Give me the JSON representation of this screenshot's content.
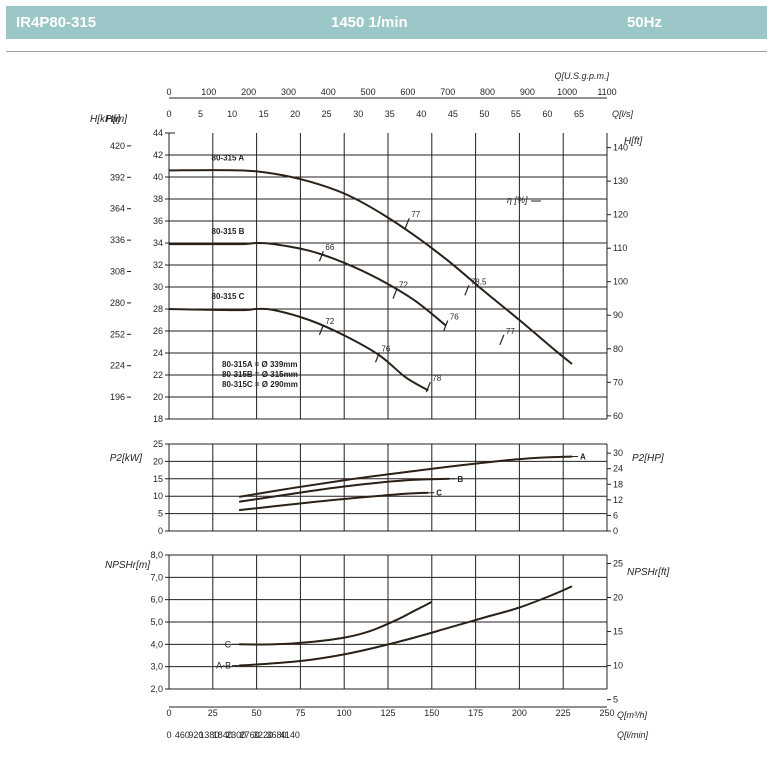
{
  "header": {
    "model": "IR4P80-315",
    "speed": "1450 1/min",
    "frequency": "50Hz"
  },
  "colors": {
    "header_bg": "#9cc7c9",
    "curve": "#2a2118",
    "grid": "#231f20"
  },
  "chart_data": {
    "type": "line",
    "flow_axes": {
      "q_gpm": {
        "label": "Q[U.S.g.p.m.]",
        "ticks": [
          0,
          100,
          200,
          300,
          400,
          500,
          600,
          700,
          800,
          900,
          1000,
          1100
        ]
      },
      "q_ls": {
        "label": "Q[l/s]",
        "ticks": [
          0,
          5,
          10,
          15,
          20,
          25,
          30,
          35,
          40,
          45,
          50,
          55,
          60,
          65
        ]
      },
      "q_m3h": {
        "label": "Q[m³/h]",
        "ticks": [
          0,
          25,
          50,
          75,
          100,
          125,
          150,
          175,
          200,
          225,
          250
        ],
        "range": [
          0,
          250
        ]
      },
      "q_lmin": {
        "label": "Q[l/min]",
        "ticks": [
          0,
          460,
          920,
          1380,
          1840,
          2300,
          2760,
          3220,
          3680,
          4140
        ]
      }
    },
    "head_panel": {
      "y_label": "H[m]",
      "y_range": [
        18,
        44
      ],
      "y_ticks": [
        18,
        20,
        22,
        24,
        26,
        28,
        30,
        32,
        34,
        36,
        38,
        40,
        42,
        44
      ],
      "kpa_label": "H[kPa]",
      "kpa_ticks": [
        196,
        224,
        252,
        280,
        308,
        336,
        364,
        392,
        420
      ],
      "ft_label": "H[ft]",
      "ft_ticks": [
        60,
        70,
        80,
        90,
        100,
        110,
        120,
        130,
        140
      ],
      "eff_label": "η [%]",
      "series": [
        {
          "name": "80-315 A",
          "points": [
            [
              0,
              40.6
            ],
            [
              40,
              40.6
            ],
            [
              60,
              40.3
            ],
            [
              80,
              39.6
            ],
            [
              100,
              38.5
            ],
            [
              120,
              36.8
            ],
            [
              140,
              34.7
            ],
            [
              160,
              32.3
            ],
            [
              180,
              29.6
            ],
            [
              200,
              27.0
            ],
            [
              220,
              24.3
            ],
            [
              230,
              23.0
            ]
          ]
        },
        {
          "name": "80-315 B",
          "points": [
            [
              0,
              33.9
            ],
            [
              40,
              33.9
            ],
            [
              50,
              34.0
            ],
            [
              60,
              33.9
            ],
            [
              80,
              33.3
            ],
            [
              100,
              32.2
            ],
            [
              120,
              30.7
            ],
            [
              140,
              28.8
            ],
            [
              158,
              26.5
            ]
          ]
        },
        {
          "name": "80-315 C",
          "points": [
            [
              0,
              28.0
            ],
            [
              40,
              27.9
            ],
            [
              50,
              28.0
            ],
            [
              60,
              27.9
            ],
            [
              80,
              27.0
            ],
            [
              100,
              25.6
            ],
            [
              120,
              23.8
            ],
            [
              135,
              21.8
            ],
            [
              148,
              20.6
            ]
          ]
        }
      ],
      "efficiency_marks": [
        {
          "label": "77",
          "q": 136,
          "h": 35.8
        },
        {
          "label": "78,5",
          "q": 170,
          "h": 29.7
        },
        {
          "label": "77",
          "q": 190,
          "h": 25.2
        },
        {
          "label": "66",
          "q": 87,
          "h": 32.8
        },
        {
          "label": "72",
          "q": 129,
          "h": 29.4
        },
        {
          "label": "76",
          "q": 158,
          "h": 26.5
        },
        {
          "label": "72",
          "q": 87,
          "h": 26.1
        },
        {
          "label": "76",
          "q": 119,
          "h": 23.6
        },
        {
          "label": "78",
          "q": 148,
          "h": 20.9
        }
      ],
      "diameters": [
        "80-315A = Ø 339mm",
        "80-315B = Ø 315mm",
        "80-315C = Ø 290mm"
      ]
    },
    "power_panel": {
      "y_label": "P2[kW]",
      "y_range": [
        0,
        25
      ],
      "y_ticks": [
        0,
        5,
        10,
        15,
        20,
        25
      ],
      "hp_label": "P2[HP]",
      "hp_ticks": [
        0,
        6,
        12,
        18,
        24,
        30
      ],
      "series": [
        {
          "name": "A",
          "points": [
            [
              40,
              9.8
            ],
            [
              70,
              12.3
            ],
            [
              100,
              14.6
            ],
            [
              130,
              16.6
            ],
            [
              160,
              18.5
            ],
            [
              190,
              20.2
            ],
            [
              210,
              21.0
            ],
            [
              230,
              21.4
            ]
          ]
        },
        {
          "name": "B",
          "points": [
            [
              40,
              8.4
            ],
            [
              60,
              9.9
            ],
            [
              80,
              11.4
            ],
            [
              100,
              12.8
            ],
            [
              120,
              13.9
            ],
            [
              140,
              14.7
            ],
            [
              160,
              15.0
            ]
          ]
        },
        {
          "name": "C",
          "points": [
            [
              40,
              6.0
            ],
            [
              60,
              7.1
            ],
            [
              80,
              8.2
            ],
            [
              100,
              9.2
            ],
            [
              120,
              10.1
            ],
            [
              135,
              10.7
            ],
            [
              148,
              11.0
            ]
          ]
        }
      ]
    },
    "npsh_panel": {
      "y_label": "NPSHr[m]",
      "y_range": [
        2,
        8
      ],
      "y_ticks_labels": [
        "2,0",
        "3,0",
        "4,0",
        "5,0",
        "6,0",
        "7,0",
        "8,0"
      ],
      "y_ticks": [
        2,
        3,
        4,
        5,
        6,
        7,
        8
      ],
      "ft_label": "NPSHr[ft]",
      "ft_ticks": [
        5,
        10,
        15,
        20,
        25
      ],
      "series": [
        {
          "name": "C",
          "points": [
            [
              40,
              4.0
            ],
            [
              60,
              4.0
            ],
            [
              80,
              4.1
            ],
            [
              100,
              4.3
            ],
            [
              115,
              4.6
            ],
            [
              130,
              5.1
            ],
            [
              140,
              5.5
            ],
            [
              150,
              5.9
            ]
          ]
        },
        {
          "name": "A-B",
          "points": [
            [
              40,
              3.05
            ],
            [
              60,
              3.15
            ],
            [
              80,
              3.3
            ],
            [
              100,
              3.55
            ],
            [
              120,
              3.9
            ],
            [
              140,
              4.3
            ],
            [
              160,
              4.75
            ],
            [
              180,
              5.2
            ],
            [
              200,
              5.65
            ],
            [
              220,
              6.25
            ],
            [
              230,
              6.6
            ]
          ]
        }
      ]
    }
  }
}
